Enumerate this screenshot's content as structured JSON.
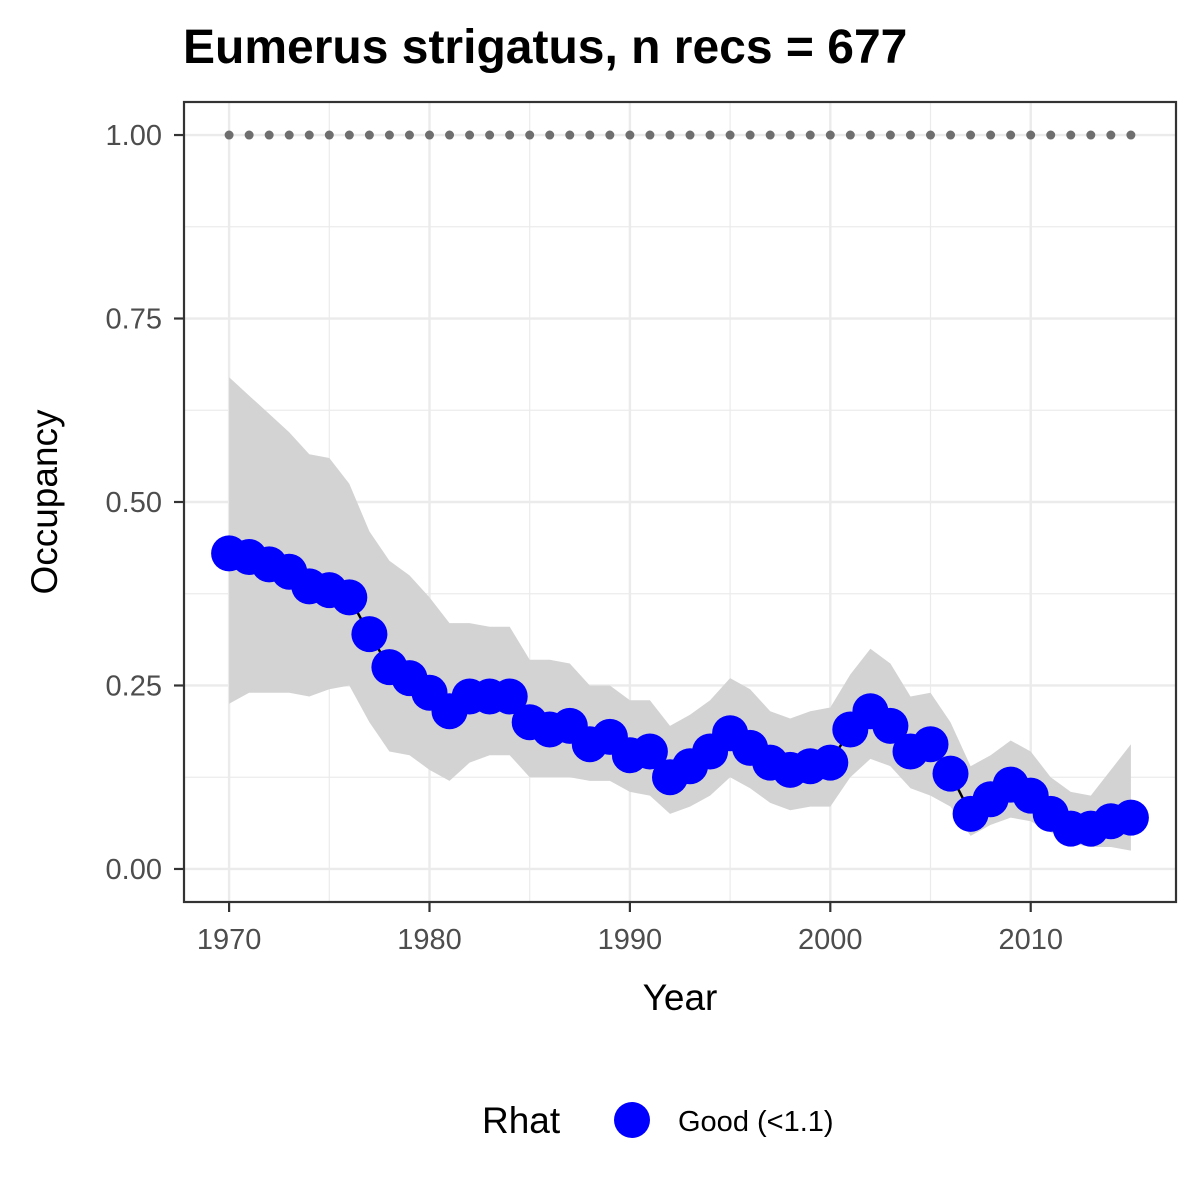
{
  "chart_data": {
    "type": "line",
    "title": "Eumerus strigatus, n recs = 677",
    "xlabel": "Year",
    "ylabel": "Occupancy",
    "xlim": [
      1967.75,
      2017.25
    ],
    "ylim": [
      -0.045,
      1.045
    ],
    "x_ticks": [
      1970,
      1980,
      1990,
      2000,
      2010
    ],
    "y_ticks": [
      0,
      0.25,
      0.5,
      0.75,
      1.0
    ],
    "y_tick_labels": [
      "0.00",
      "0.25",
      "0.50",
      "0.75",
      "1.00"
    ],
    "grid": true,
    "legend": {
      "title": "Rhat",
      "position": "bottom",
      "entries": [
        {
          "label": "Good (<1.1)",
          "color": "#0000FF"
        }
      ]
    },
    "colors": {
      "points": "#0000FF",
      "line": "#000000",
      "ribbon": "#d3d3d3",
      "reference": "#6e6e6e",
      "grid": "#ebebeb",
      "panel_border": "#333333"
    },
    "x": [
      1970,
      1971,
      1972,
      1973,
      1974,
      1975,
      1976,
      1977,
      1978,
      1979,
      1980,
      1981,
      1982,
      1983,
      1984,
      1985,
      1986,
      1987,
      1988,
      1989,
      1990,
      1991,
      1992,
      1993,
      1994,
      1995,
      1996,
      1997,
      1998,
      1999,
      2000,
      2001,
      2002,
      2003,
      2004,
      2005,
      2006,
      2007,
      2008,
      2009,
      2010,
      2011,
      2012,
      2013,
      2014,
      2015
    ],
    "series": [
      {
        "name": "Good (<1.1)",
        "values": [
          0.43,
          0.425,
          0.415,
          0.405,
          0.385,
          0.38,
          0.37,
          0.32,
          0.275,
          0.26,
          0.24,
          0.215,
          0.235,
          0.235,
          0.235,
          0.2,
          0.19,
          0.195,
          0.17,
          0.18,
          0.155,
          0.16,
          0.125,
          0.14,
          0.16,
          0.185,
          0.165,
          0.145,
          0.135,
          0.14,
          0.145,
          0.19,
          0.215,
          0.195,
          0.16,
          0.17,
          0.13,
          0.075,
          0.095,
          0.115,
          0.1,
          0.075,
          0.055,
          0.055,
          0.065,
          0.07
        ],
        "lower": [
          0.225,
          0.24,
          0.24,
          0.24,
          0.235,
          0.245,
          0.25,
          0.2,
          0.16,
          0.155,
          0.135,
          0.12,
          0.145,
          0.155,
          0.155,
          0.125,
          0.125,
          0.125,
          0.12,
          0.12,
          0.105,
          0.1,
          0.075,
          0.085,
          0.1,
          0.125,
          0.11,
          0.09,
          0.08,
          0.085,
          0.085,
          0.125,
          0.15,
          0.14,
          0.11,
          0.1,
          0.085,
          0.045,
          0.06,
          0.07,
          0.065,
          0.05,
          0.035,
          0.03,
          0.03,
          0.025
        ],
        "upper": [
          0.67,
          0.645,
          0.62,
          0.595,
          0.565,
          0.56,
          0.525,
          0.46,
          0.42,
          0.4,
          0.37,
          0.335,
          0.335,
          0.33,
          0.33,
          0.285,
          0.285,
          0.28,
          0.25,
          0.25,
          0.23,
          0.23,
          0.195,
          0.21,
          0.23,
          0.26,
          0.245,
          0.215,
          0.205,
          0.215,
          0.22,
          0.265,
          0.3,
          0.28,
          0.235,
          0.24,
          0.2,
          0.14,
          0.155,
          0.175,
          0.16,
          0.125,
          0.105,
          0.1,
          0.135,
          0.17
        ]
      }
    ],
    "reference_line": {
      "y": 1.0,
      "style": "dotted",
      "color": "#6e6e6e"
    }
  }
}
